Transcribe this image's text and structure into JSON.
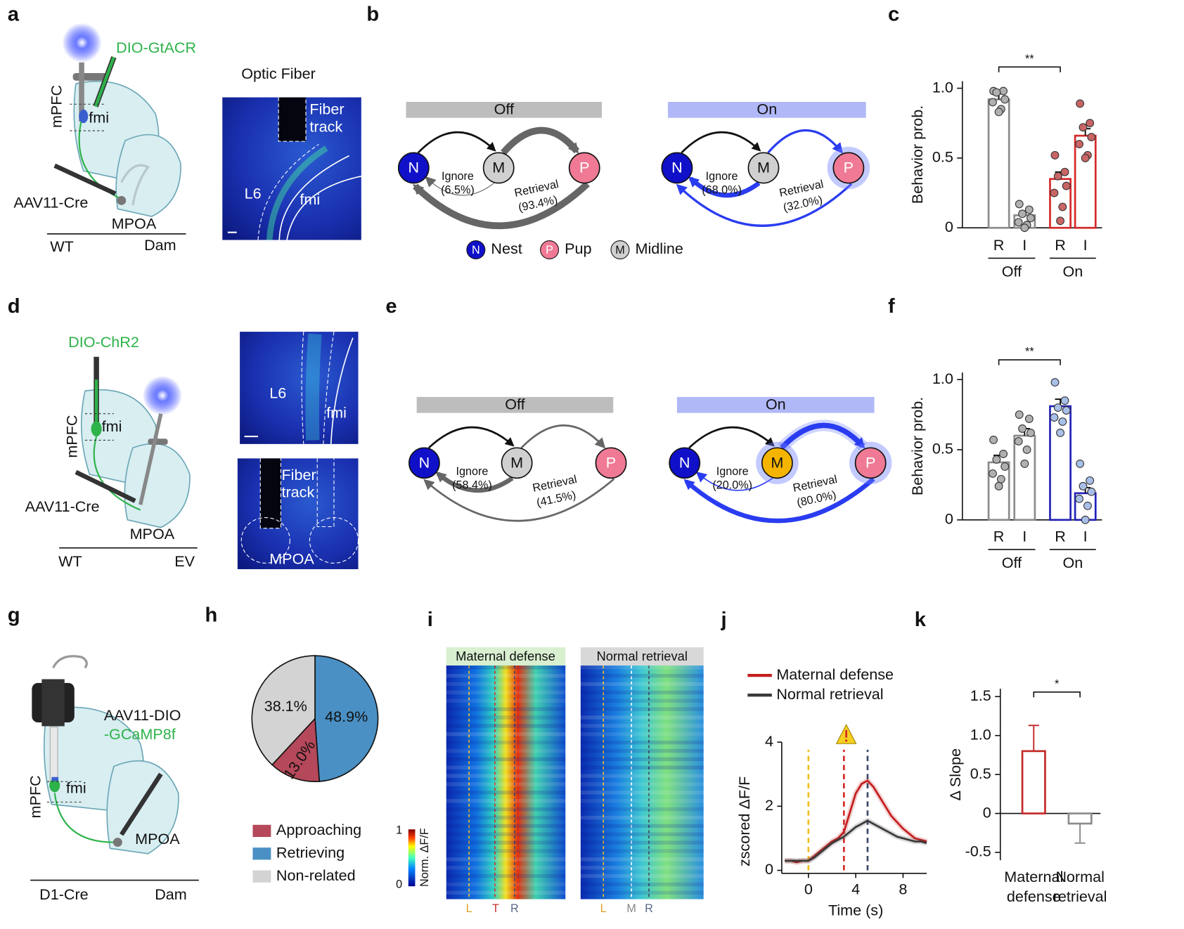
{
  "panels": {
    "a": {
      "label": "a",
      "injection": "DIO-GtACR",
      "region": "mPFC",
      "tract": "fmi",
      "virus": "AAV11-Cre",
      "target": "MPOA",
      "left": "WT",
      "right": "Dam",
      "image_title": "Optic Fiber",
      "fiber_track": [
        "Fiber",
        "track"
      ],
      "layer": "L6",
      "tract_image": "fmi"
    },
    "b": {
      "label": "b",
      "off": "Off",
      "on": "On",
      "nodes": {
        "N": "N",
        "M": "M",
        "P": "P"
      },
      "off_ignore": [
        "Ignore",
        "(6.5%)"
      ],
      "off_retrieval": [
        "Retrieval",
        "(93.4%)"
      ],
      "on_ignore": [
        "Ignore",
        "(68.0%)"
      ],
      "on_retrieval": [
        "Retrieval",
        "(32.0%)"
      ],
      "legend": [
        "Nest",
        "Pup",
        "Midline"
      ]
    },
    "c": {
      "label": "c"
    },
    "d": {
      "label": "d",
      "injection": "DIO-ChR2",
      "region": "mPFC",
      "tract": "fmi",
      "virus": "AAV11-Cre",
      "target": "MPOA",
      "left": "WT",
      "right": "EV",
      "layer": "L6",
      "tract_image": "fmi",
      "fiber_track": [
        "Fiber",
        "track"
      ],
      "image_region": "MPOA"
    },
    "e": {
      "label": "e",
      "off": "Off",
      "on": "On",
      "nodes": {
        "N": "N",
        "M": "M",
        "P": "P"
      },
      "off_ignore": [
        "Ignore",
        "(58.4%)"
      ],
      "off_retrieval": [
        "Retrieval",
        "(41.5%)"
      ],
      "on_ignore": [
        "Ignore",
        "(20.0%)"
      ],
      "on_retrieval": [
        "Retrieval",
        "(80.0%)"
      ]
    },
    "f": {
      "label": "f"
    },
    "g": {
      "label": "g",
      "region": "mPFC",
      "tract": "fmi",
      "virus": [
        "AAV11-DIO",
        "-GCaMP8f"
      ],
      "target": "MPOA",
      "left": "D1-Cre",
      "right": "Dam"
    },
    "h": {
      "label": "h"
    },
    "i": {
      "label": "i",
      "titles": [
        "Maternal defense",
        "Normal retrieval"
      ],
      "colorbar_label": "Norm. ΔF/F",
      "colorbar_ticks": [
        1,
        0
      ],
      "markers_left": [
        "L",
        "T",
        "R"
      ],
      "markers_right": [
        "L",
        "M",
        "R"
      ]
    },
    "j": {
      "label": "j"
    },
    "k": {
      "label": "k"
    }
  },
  "chart_data": [
    {
      "type": "bar",
      "ylabel": "Behavior prob.",
      "categories": [
        "R",
        "I",
        "R",
        "I"
      ],
      "groups": [
        "Off",
        "On"
      ],
      "values": [
        0.92,
        0.09,
        0.35,
        0.66
      ],
      "errors": [
        0.04,
        0.03,
        0.05,
        0.05
      ],
      "points": [
        [
          0.98,
          0.98,
          0.97,
          0.92,
          0.9,
          0.85,
          0.83
        ],
        [
          0.17,
          0.13,
          0.1,
          0.07,
          0.04,
          0.02,
          0.0
        ],
        [
          0.52,
          0.4,
          0.37,
          0.3,
          0.25,
          0.15,
          0.05
        ],
        [
          0.89,
          0.75,
          0.72,
          0.65,
          0.6,
          0.52,
          0.5
        ]
      ],
      "colors": [
        "#8c8c8c",
        "#8c8c8c",
        "#d42a2a",
        "#d42a2a"
      ],
      "point_colors": [
        "#b0b0b0",
        "#b0b0b0",
        "#c96565",
        "#c96565"
      ],
      "ylim": [
        0,
        1.05
      ],
      "yticks": [
        0,
        0.5,
        {
          "value": 1,
          "label": "1.0"
        }
      ],
      "annotation": "**"
    },
    {
      "type": "bar",
      "ylabel": "Behavior prob.",
      "categories": [
        "R",
        "I",
        "R",
        "I"
      ],
      "groups": [
        "Off",
        "On"
      ],
      "values": [
        0.41,
        0.6,
        0.81,
        0.19
      ],
      "errors": [
        0.05,
        0.05,
        0.05,
        0.04
      ],
      "points": [
        [
          0.57,
          0.47,
          0.43,
          0.38,
          0.33,
          0.29,
          0.24
        ],
        [
          0.75,
          0.72,
          0.65,
          0.62,
          0.56,
          0.5,
          0.4
        ],
        [
          0.98,
          0.85,
          0.8,
          0.78,
          0.73,
          0.7,
          0.62
        ],
        [
          0.4,
          0.28,
          0.24,
          0.2,
          0.15,
          0.1,
          0.0
        ]
      ],
      "colors": [
        "#8c8c8c",
        "#8c8c8c",
        "#2323b8",
        "#2323b8"
      ],
      "point_colors": [
        "#b0b0b0",
        "#b0b0b0",
        "#a8bfe8",
        "#a8bfe8"
      ],
      "ylim": [
        0,
        1.05
      ],
      "yticks": [
        0,
        0.5,
        {
          "value": 1,
          "label": "1.0"
        }
      ],
      "annotation": "**"
    },
    {
      "type": "pie",
      "categories": [
        "Retrieving",
        "Approaching",
        "Non-related"
      ],
      "values": [
        48.9,
        13.0,
        38.1
      ],
      "value_labels": [
        "48.9%",
        "13.0%",
        "38.1%"
      ],
      "colors": [
        "#4a90c4",
        "#b5485a",
        "#d3d3d3"
      ]
    },
    {
      "type": "line",
      "xlabel": "Time (s)",
      "ylabel": "zscored ΔF/F",
      "x": [
        -2,
        -1.5,
        -1,
        -0.5,
        0,
        0.5,
        1,
        1.5,
        2,
        2.5,
        3,
        3.5,
        4,
        4.5,
        5,
        5.5,
        6,
        6.5,
        7,
        7.5,
        8,
        8.5,
        9,
        9.5,
        10
      ],
      "series": [
        {
          "name": "Maternal defense",
          "color": "#c41e1e",
          "values": [
            0.3,
            0.3,
            0.25,
            0.3,
            0.3,
            0.45,
            0.6,
            0.75,
            0.9,
            1.0,
            1.2,
            1.8,
            2.4,
            2.7,
            2.8,
            2.6,
            2.3,
            2.0,
            1.7,
            1.5,
            1.3,
            1.15,
            1.0,
            0.95,
            0.9
          ]
        },
        {
          "name": "Normal retrieval",
          "color": "#3a3a3a",
          "values": [
            0.3,
            0.3,
            0.3,
            0.3,
            0.3,
            0.4,
            0.55,
            0.7,
            0.85,
            0.95,
            1.05,
            1.2,
            1.35,
            1.45,
            1.55,
            1.45,
            1.35,
            1.25,
            1.15,
            1.05,
            1.0,
            0.95,
            0.9,
            0.9,
            0.85
          ]
        }
      ],
      "events": [
        0,
        3,
        5
      ],
      "event_colors": [
        "#f0c020",
        "#d42a2a",
        "#3a4a6a"
      ],
      "xlim": [
        -2,
        10
      ],
      "xticks": [
        0,
        4,
        8
      ],
      "ylim": [
        0,
        4
      ],
      "yticks": [
        0,
        2,
        4
      ]
    },
    {
      "type": "bar",
      "ylabel": "Δ Slope",
      "categories": [
        [
          "Maternal",
          "defense"
        ],
        [
          "Normal",
          "retrieval"
        ]
      ],
      "values": [
        0.8,
        -0.13
      ],
      "errors": [
        0.33,
        0.25
      ],
      "colors": [
        "#c42a2a",
        "#8c8c8c"
      ],
      "ylim": [
        -0.6,
        1.6
      ],
      "yticks": [
        -0.5,
        0,
        0.5,
        {
          "value": 1,
          "label": "1.0"
        },
        1.5
      ],
      "annotation": "*"
    }
  ]
}
